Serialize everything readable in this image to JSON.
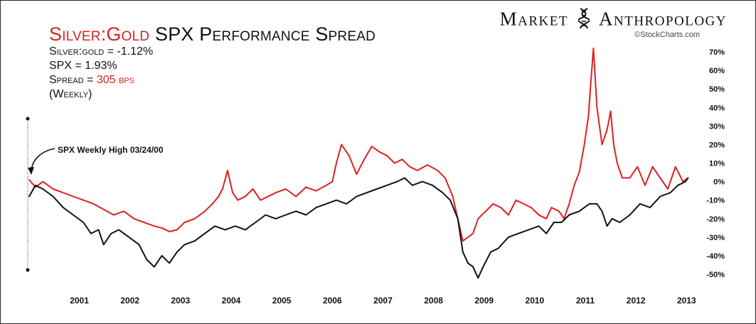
{
  "header": {
    "title_part1": "Silver:Gold",
    "title_part2": " SPX Performance Spread",
    "silver_gold_label": "Silver:gold = -1.12%",
    "spx_label": "SPX = 1.93%",
    "spread_label": "Spread = ",
    "spread_value": "305 bps",
    "frequency": "(Weekly)"
  },
  "brand": {
    "name_part1": "Market",
    "name_part2": "Anthropology",
    "credit": "©StockCharts.com"
  },
  "annotation": "SPX Weekly High 03/24/00",
  "colors": {
    "silver_gold_spx": "#e02020",
    "spx": "#111111",
    "accent_red": "#d42424"
  },
  "chart_data": {
    "type": "line",
    "x_tick_labels": [
      "2001",
      "2002",
      "2003",
      "2004",
      "2005",
      "2006",
      "2007",
      "2008",
      "2009",
      "2010",
      "2011",
      "2012",
      "2013"
    ],
    "y_tick_labels": [
      "70%",
      "60%",
      "50%",
      "40%",
      "30%",
      "20%",
      "10%",
      "0%",
      "-10%",
      "-20%",
      "-30%",
      "-40%",
      "-50%"
    ],
    "ylim": [
      -55,
      75
    ],
    "xlim": [
      2000.2,
      2013.3
    ],
    "grid": false,
    "series": [
      {
        "color": "#e02020",
        "x": [
          2000.23,
          2000.35,
          2000.5,
          2000.7,
          2000.9,
          2001.1,
          2001.3,
          2001.5,
          2001.7,
          2001.9,
          2002.1,
          2002.3,
          2002.5,
          2002.7,
          2002.85,
          2003.0,
          2003.15,
          2003.3,
          2003.5,
          2003.7,
          2003.85,
          2003.97,
          2004.05,
          2004.15,
          2004.25,
          2004.35,
          2004.5,
          2004.65,
          2004.8,
          2004.95,
          2005.1,
          2005.3,
          2005.5,
          2005.7,
          2005.9,
          2006.1,
          2006.22,
          2006.3,
          2006.4,
          2006.55,
          2006.7,
          2006.85,
          2007.0,
          2007.15,
          2007.3,
          2007.45,
          2007.6,
          2007.75,
          2007.9,
          2008.1,
          2008.3,
          2008.45,
          2008.6,
          2008.7,
          2008.8,
          2008.9,
          2009.0,
          2009.1,
          2009.25,
          2009.4,
          2009.55,
          2009.7,
          2009.85,
          2010.0,
          2010.15,
          2010.3,
          2010.45,
          2010.55,
          2010.7,
          2010.8,
          2010.9,
          2011.0,
          2011.1,
          2011.2,
          2011.28,
          2011.32,
          2011.38,
          2011.45,
          2011.55,
          2011.65,
          2011.72,
          2011.78,
          2011.85,
          2011.95,
          2012.1,
          2012.25,
          2012.4,
          2012.55,
          2012.7,
          2012.85,
          2013.0,
          2013.15,
          2013.25
        ],
        "y": [
          1,
          -3,
          0,
          -4,
          -6,
          -8,
          -10,
          -12,
          -15,
          -18,
          -16,
          -20,
          -22,
          -24,
          -25,
          -27,
          -26,
          -22,
          -20,
          -16,
          -12,
          -8,
          -4,
          6,
          -6,
          -10,
          -8,
          -4,
          -10,
          -8,
          -6,
          -4,
          -8,
          -3,
          -5,
          -2,
          0,
          10,
          20,
          14,
          4,
          12,
          19,
          16,
          14,
          10,
          12,
          8,
          6,
          9,
          6,
          2,
          -8,
          -20,
          -32,
          -30,
          -28,
          -20,
          -16,
          -12,
          -14,
          -18,
          -10,
          -12,
          -14,
          -18,
          -20,
          -14,
          -16,
          -20,
          -12,
          -2,
          5,
          20,
          35,
          50,
          72,
          40,
          20,
          28,
          38,
          20,
          10,
          2,
          2,
          8,
          -2,
          8,
          2,
          -4,
          8,
          0,
          2
        ]
      },
      {
        "color": "#111111",
        "x": [
          2000.23,
          2000.35,
          2000.5,
          2000.7,
          2000.9,
          2001.1,
          2001.3,
          2001.45,
          2001.6,
          2001.7,
          2001.85,
          2002.0,
          2002.2,
          2002.4,
          2002.55,
          2002.7,
          2002.85,
          2003.0,
          2003.15,
          2003.3,
          2003.5,
          2003.7,
          2003.9,
          2004.1,
          2004.3,
          2004.5,
          2004.7,
          2004.9,
          2005.1,
          2005.3,
          2005.5,
          2005.7,
          2005.9,
          2006.1,
          2006.3,
          2006.5,
          2006.7,
          2006.9,
          2007.1,
          2007.3,
          2007.5,
          2007.65,
          2007.8,
          2008.0,
          2008.2,
          2008.4,
          2008.55,
          2008.7,
          2008.8,
          2008.9,
          2009.0,
          2009.1,
          2009.2,
          2009.35,
          2009.5,
          2009.7,
          2009.9,
          2010.1,
          2010.3,
          2010.45,
          2010.6,
          2010.75,
          2010.9,
          2011.1,
          2011.3,
          2011.45,
          2011.55,
          2011.65,
          2011.75,
          2011.9,
          2012.1,
          2012.3,
          2012.5,
          2012.7,
          2012.9,
          2013.05,
          2013.2,
          2013.25
        ],
        "y": [
          -8,
          -2,
          -4,
          -8,
          -14,
          -18,
          -22,
          -28,
          -26,
          -34,
          -28,
          -26,
          -30,
          -34,
          -42,
          -46,
          -40,
          -44,
          -38,
          -34,
          -32,
          -28,
          -24,
          -26,
          -24,
          -26,
          -22,
          -18,
          -20,
          -18,
          -16,
          -18,
          -14,
          -12,
          -10,
          -12,
          -8,
          -6,
          -4,
          -2,
          0,
          2,
          -2,
          0,
          -2,
          -6,
          -10,
          -20,
          -38,
          -44,
          -46,
          -52,
          -46,
          -38,
          -36,
          -30,
          -28,
          -26,
          -24,
          -28,
          -22,
          -22,
          -18,
          -16,
          -12,
          -12,
          -16,
          -24,
          -20,
          -22,
          -18,
          -12,
          -14,
          -8,
          -6,
          -2,
          0,
          2
        ]
      }
    ]
  }
}
